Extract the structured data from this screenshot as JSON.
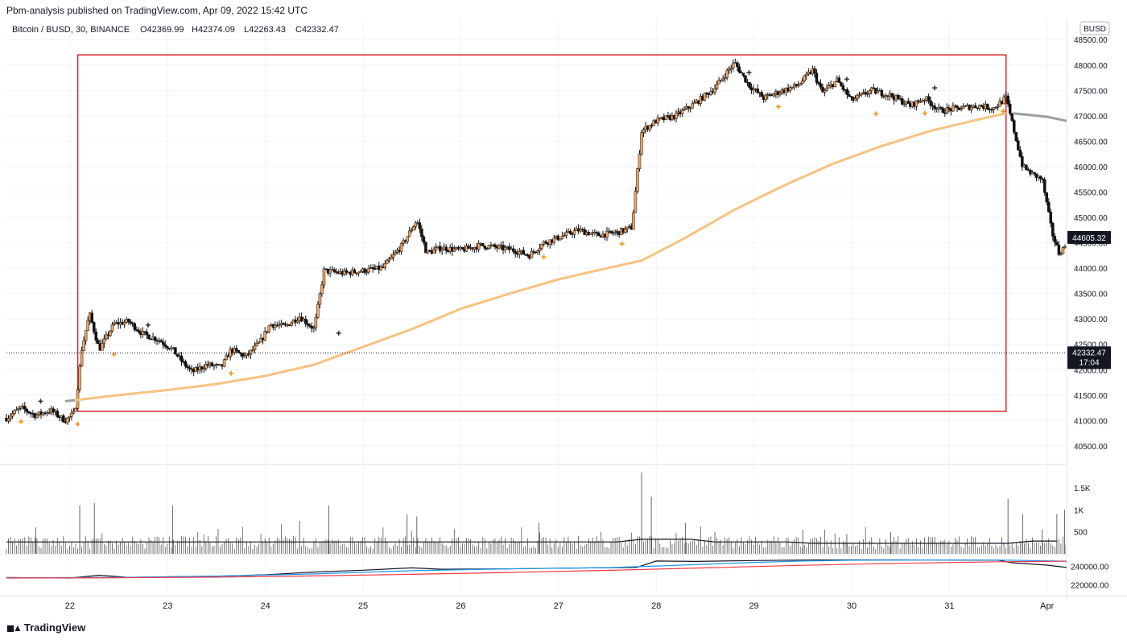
{
  "header": {
    "publisher": "Pbm-analysis published on TradingView.com, Apr 09, 2022 15:42 UTC",
    "symbol": "Bitcoin / BUSD, 30, BINANCE",
    "open": "O42369.99",
    "high": "H42374.09",
    "low": "L42263.43",
    "close": "C42332.47"
  },
  "footer": {
    "brand": "TradingView"
  },
  "chart_data": [
    {
      "type": "candlestick",
      "currency_badge": "BUSD",
      "x_tick_labels": [
        "22",
        "23",
        "24",
        "25",
        "26",
        "27",
        "28",
        "29",
        "30",
        "31",
        "Apr"
      ],
      "x_range": [
        21.35,
        32.2
      ],
      "y_ticks": [
        40500,
        41000,
        41500,
        42000,
        42500,
        43000,
        43500,
        44000,
        44500,
        45000,
        45500,
        46000,
        46500,
        47000,
        47500,
        48000,
        48500
      ],
      "y_tick_labels": [
        "40500.00",
        "41000.00",
        "41500.00",
        "42000.00",
        "42500.00",
        "43000.00",
        "43500.00",
        "44000.00",
        "44500.00",
        "45000.00",
        "45500.00",
        "46000.00",
        "46500.00",
        "47000.00",
        "47500.00",
        "48000.00",
        "48500.00"
      ],
      "ylim": [
        40150,
        48900
      ],
      "price_path": [
        [
          21.35,
          41050
        ],
        [
          21.5,
          41250
        ],
        [
          21.65,
          41100
        ],
        [
          21.8,
          41200
        ],
        [
          21.95,
          41000
        ],
        [
          22.05,
          41150
        ],
        [
          22.12,
          42400
        ],
        [
          22.2,
          43100
        ],
        [
          22.3,
          42400
        ],
        [
          22.45,
          42900
        ],
        [
          22.6,
          42950
        ],
        [
          22.75,
          42700
        ],
        [
          22.9,
          42600
        ],
        [
          23.05,
          42400
        ],
        [
          23.15,
          42150
        ],
        [
          23.25,
          41950
        ],
        [
          23.4,
          42100
        ],
        [
          23.55,
          42050
        ],
        [
          23.65,
          42400
        ],
        [
          23.8,
          42250
        ],
        [
          23.95,
          42550
        ],
        [
          24.05,
          42900
        ],
        [
          24.2,
          42850
        ],
        [
          24.35,
          43050
        ],
        [
          24.5,
          42800
        ],
        [
          24.6,
          43950
        ],
        [
          24.8,
          43900
        ],
        [
          25.0,
          43950
        ],
        [
          25.2,
          44000
        ],
        [
          25.4,
          44450
        ],
        [
          25.55,
          44950
        ],
        [
          25.65,
          44300
        ],
        [
          25.8,
          44400
        ],
        [
          26.0,
          44350
        ],
        [
          26.2,
          44450
        ],
        [
          26.4,
          44400
        ],
        [
          26.55,
          44350
        ],
        [
          26.7,
          44250
        ],
        [
          26.85,
          44500
        ],
        [
          27.0,
          44600
        ],
        [
          27.2,
          44750
        ],
        [
          27.4,
          44650
        ],
        [
          27.6,
          44700
        ],
        [
          27.75,
          44800
        ],
        [
          27.85,
          46700
        ],
        [
          28.0,
          46900
        ],
        [
          28.2,
          47000
        ],
        [
          28.4,
          47250
        ],
        [
          28.6,
          47550
        ],
        [
          28.8,
          48050
        ],
        [
          28.95,
          47600
        ],
        [
          29.1,
          47350
        ],
        [
          29.3,
          47500
        ],
        [
          29.45,
          47600
        ],
        [
          29.6,
          47900
        ],
        [
          29.7,
          47450
        ],
        [
          29.85,
          47700
        ],
        [
          30.0,
          47300
        ],
        [
          30.2,
          47500
        ],
        [
          30.4,
          47400
        ],
        [
          30.6,
          47200
        ],
        [
          30.75,
          47350
        ],
        [
          30.9,
          47100
        ],
        [
          31.1,
          47150
        ],
        [
          31.3,
          47200
        ],
        [
          31.45,
          47150
        ],
        [
          31.58,
          47350
        ],
        [
          31.65,
          46800
        ],
        [
          31.75,
          46000
        ],
        [
          31.85,
          45850
        ],
        [
          31.95,
          45750
        ],
        [
          32.05,
          44700
        ],
        [
          32.12,
          44300
        ],
        [
          32.2,
          44450
        ]
      ],
      "ema_line": [
        [
          22.05,
          41400
        ],
        [
          22.5,
          41500
        ],
        [
          23.0,
          41600
        ],
        [
          23.5,
          41720
        ],
        [
          24.0,
          41880
        ],
        [
          24.5,
          42100
        ],
        [
          25.0,
          42450
        ],
        [
          25.5,
          42800
        ],
        [
          26.0,
          43200
        ],
        [
          26.5,
          43500
        ],
        [
          27.0,
          43780
        ],
        [
          27.5,
          44000
        ],
        [
          27.85,
          44150
        ],
        [
          28.3,
          44600
        ],
        [
          28.8,
          45150
        ],
        [
          29.3,
          45620
        ],
        [
          29.8,
          46050
        ],
        [
          30.3,
          46400
        ],
        [
          30.8,
          46700
        ],
        [
          31.3,
          46930
        ],
        [
          31.58,
          47050
        ]
      ],
      "ema_projection": [
        [
          31.65,
          47050
        ],
        [
          32.0,
          46980
        ],
        [
          32.2,
          46900
        ]
      ],
      "ema_stub": [
        [
          21.95,
          41380
        ],
        [
          22.05,
          41400
        ]
      ],
      "box": {
        "x1": 22.08,
        "x2": 31.58,
        "y_top": 48200,
        "y_bottom": 41180
      },
      "markers_orange": [
        [
          21.5,
          40980
        ],
        [
          22.08,
          40930
        ],
        [
          22.45,
          42300
        ],
        [
          23.65,
          41930
        ],
        [
          26.85,
          44220
        ],
        [
          27.65,
          44480
        ],
        [
          29.25,
          47180
        ],
        [
          30.25,
          47040
        ],
        [
          30.75,
          47050
        ],
        [
          31.55,
          47090
        ]
      ],
      "markers_dark": [
        [
          21.7,
          41380
        ],
        [
          22.8,
          42880
        ],
        [
          24.75,
          42720
        ],
        [
          28.95,
          47850
        ],
        [
          29.95,
          47720
        ],
        [
          30.85,
          47550
        ],
        [
          27.6,
          44720
        ]
      ],
      "current_price": {
        "value": 42332.47,
        "label": "42332.47",
        "countdown": "17:04"
      },
      "last_price_badge": {
        "value": 44605.32,
        "label": "44605.32"
      },
      "colors": {
        "up": "#f7a35c",
        "down": "#111111",
        "ema": "#f8c282",
        "ema_projection": "#9e9e9e",
        "box": "#e0242e",
        "marker_orange": "#f7931a",
        "marker_dark": "#333333"
      }
    },
    {
      "type": "bar",
      "name": "volume",
      "y_tick_labels": [
        "1.5K",
        "1K",
        "500"
      ],
      "y_ticks": [
        1500,
        1000,
        500
      ],
      "ylim": [
        0,
        1900
      ],
      "avg_level": 270,
      "avg_level_after": 240,
      "baseline_bars": 110,
      "spikes": [
        [
          21.65,
          600
        ],
        [
          22.1,
          1100
        ],
        [
          22.25,
          1150
        ],
        [
          23.05,
          1100
        ],
        [
          24.35,
          750
        ],
        [
          24.65,
          1100
        ],
        [
          25.45,
          900
        ],
        [
          25.55,
          850
        ],
        [
          26.8,
          700
        ],
        [
          27.85,
          1850
        ],
        [
          27.95,
          1300
        ],
        [
          28.3,
          700
        ],
        [
          28.6,
          500
        ],
        [
          29.5,
          550
        ],
        [
          29.95,
          450
        ],
        [
          30.4,
          500
        ],
        [
          31.6,
          1250
        ],
        [
          31.75,
          900
        ],
        [
          31.95,
          550
        ],
        [
          32.1,
          900
        ],
        [
          32.18,
          1000
        ]
      ]
    },
    {
      "type": "line",
      "name": "obv",
      "y_tick_labels": [
        "240000.00",
        "220000.00"
      ],
      "y_ticks": [
        240000,
        220000
      ],
      "ylim": [
        210000,
        252000
      ],
      "lines": [
        {
          "color": "#131722",
          "points": [
            [
              21.35,
              228000
            ],
            [
              22.0,
              227500
            ],
            [
              22.3,
              230500
            ],
            [
              22.6,
              228200
            ],
            [
              23.0,
              228800
            ],
            [
              23.5,
              229500
            ],
            [
              24.0,
              231000
            ],
            [
              24.5,
              234000
            ],
            [
              25.0,
              236000
            ],
            [
              25.5,
              238500
            ],
            [
              25.8,
              237000
            ],
            [
              26.5,
              237500
            ],
            [
              27.0,
              238200
            ],
            [
              27.8,
              239000
            ],
            [
              28.0,
              246000
            ],
            [
              28.4,
              245500
            ],
            [
              29.0,
              246500
            ],
            [
              29.5,
              247000
            ],
            [
              30.0,
              247200
            ],
            [
              30.5,
              247200
            ],
            [
              31.0,
              247000
            ],
            [
              31.5,
              246800
            ],
            [
              31.65,
              244000
            ],
            [
              32.0,
              241500
            ],
            [
              32.2,
              239000
            ]
          ]
        },
        {
          "color": "#2196f3",
          "points": [
            [
              21.35,
              227800
            ],
            [
              22.5,
              228200
            ],
            [
              23.5,
              229500
            ],
            [
              24.5,
              232000
            ],
            [
              25.5,
              235500
            ],
            [
              26.5,
              237500
            ],
            [
              27.5,
              238800
            ],
            [
              28.0,
              240500
            ],
            [
              28.5,
              242500
            ],
            [
              29.0,
              244500
            ],
            [
              29.5,
              246000
            ],
            [
              30.0,
              246800
            ],
            [
              30.5,
              247000
            ],
            [
              31.0,
              247100
            ],
            [
              31.6,
              246900
            ],
            [
              32.2,
              245800
            ]
          ]
        },
        {
          "color": "#f23645",
          "points": [
            [
              21.35,
              227500
            ],
            [
              22.5,
              227800
            ],
            [
              23.5,
              228500
            ],
            [
              24.5,
              229800
            ],
            [
              25.5,
              231500
            ],
            [
              26.5,
              233500
            ],
            [
              27.5,
              235800
            ],
            [
              28.5,
              238500
            ],
            [
              29.5,
              241300
            ],
            [
              30.5,
              243500
            ],
            [
              31.5,
              245200
            ],
            [
              32.2,
              245700
            ]
          ]
        }
      ]
    }
  ]
}
